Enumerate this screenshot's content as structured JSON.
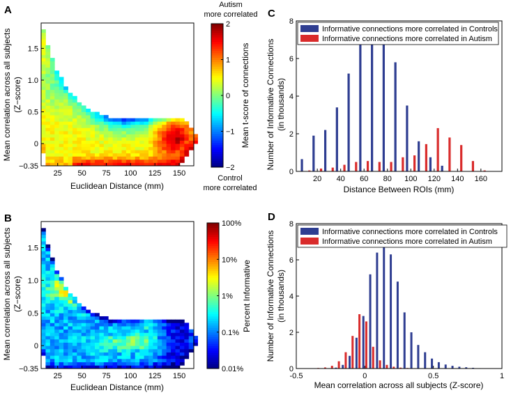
{
  "chart_data": [
    {
      "panel": "A",
      "type": "heatmap",
      "xlabel": "Euclidean Distance (mm)",
      "ylabel_lines": [
        "Mean correlation across all subjects",
        "(Z−score)"
      ],
      "x_range": [
        8,
        165
      ],
      "y_range": [
        -0.35,
        1.9
      ],
      "x_ticks": [
        "25",
        "50",
        "75",
        "100",
        "125",
        "150"
      ],
      "x_tick_values": [
        25,
        50,
        75,
        100,
        125,
        150
      ],
      "y_ticks": [
        "1.5",
        "1.0",
        "0.5",
        "0",
        "−0.35"
      ],
      "y_tick_values": [
        1.5,
        1.0,
        0.5,
        0,
        -0.35
      ],
      "colorbar": {
        "label": "Mean t-score of connections",
        "ticks": [
          "2",
          "1",
          "0",
          "−1",
          "−2"
        ],
        "tick_values": [
          2,
          1,
          0,
          -1,
          -2
        ],
        "range": [
          -2,
          2
        ],
        "top_label_lines": [
          "Autism",
          "more correlated"
        ],
        "bottom_label_lines": [
          "Control",
          "more correlated"
        ],
        "colormap": "jet"
      }
    },
    {
      "panel": "B",
      "type": "heatmap",
      "xlabel": "Euclidean Distance (mm)",
      "ylabel_lines": [
        "Mean correlation across all subjects",
        "(Z−score)"
      ],
      "x_range": [
        8,
        165
      ],
      "y_range": [
        -0.35,
        1.9
      ],
      "x_ticks": [
        "25",
        "50",
        "75",
        "100",
        "125",
        "150"
      ],
      "x_tick_values": [
        25,
        50,
        75,
        100,
        125,
        150
      ],
      "y_ticks": [
        "1.5",
        "1.0",
        "0.5",
        "0",
        "−0.35"
      ],
      "y_tick_values": [
        1.5,
        1.0,
        0.5,
        0,
        -0.35
      ],
      "colorbar": {
        "label": "Percent Informative",
        "ticks": [
          "100%",
          "10%",
          "1%",
          "0.1%",
          "0.01%"
        ],
        "tick_values": [
          2,
          1,
          0,
          -1,
          -2
        ],
        "range": [
          -2,
          2
        ],
        "scale": "log10 percent",
        "colormap": "jet"
      }
    },
    {
      "panel": "C",
      "type": "bar",
      "xlabel": "Distance Between ROIs (mm)",
      "ylabel_lines": [
        "Number of Informative Connections",
        "(in thousands)"
      ],
      "x_range": [
        2,
        178
      ],
      "ylim": [
        0,
        8
      ],
      "x_ticks": [
        "20",
        "40",
        "60",
        "80",
        "100",
        "120",
        "140",
        "160"
      ],
      "x_tick_values": [
        20,
        40,
        60,
        80,
        100,
        120,
        140,
        160
      ],
      "y_ticks": [
        "0",
        "2",
        "4",
        "6",
        "8"
      ],
      "y_tick_values": [
        0,
        2,
        4,
        6,
        8
      ],
      "x": [
        10,
        20,
        30,
        40,
        50,
        60,
        70,
        80,
        90,
        100,
        110,
        120,
        130,
        140,
        150,
        160
      ],
      "series": [
        {
          "name": "Informative connections more correlated in Controls",
          "color": "#2e3d91",
          "values": [
            0.65,
            1.9,
            2.2,
            3.4,
            5.2,
            7.1,
            6.9,
            7.4,
            5.8,
            3.5,
            1.6,
            0.75,
            0.3,
            0.0,
            0.0,
            0.0
          ]
        },
        {
          "name": "Informative connections more correlated in Autism",
          "color": "#d92b2b",
          "values": [
            0.05,
            0.15,
            0.2,
            0.35,
            0.5,
            0.55,
            0.5,
            0.5,
            0.75,
            0.85,
            1.45,
            2.3,
            1.8,
            1.4,
            0.55,
            0.05
          ]
        }
      ],
      "legend_position": "top-left"
    },
    {
      "panel": "D",
      "type": "bar",
      "xlabel": "Mean correlation across all subjects (Z-score)",
      "ylabel_lines": [
        "Number of Informative Connections",
        "(in thousands)"
      ],
      "x_range": [
        -0.5,
        1.0
      ],
      "ylim": [
        0,
        8
      ],
      "x_ticks": [
        "-0.5",
        "0",
        "0.5",
        "1"
      ],
      "x_tick_values": [
        -0.5,
        0,
        0.5,
        1.0
      ],
      "y_ticks": [
        "0",
        "2",
        "4",
        "6",
        "8"
      ],
      "y_tick_values": [
        0,
        2,
        4,
        6,
        8
      ],
      "x": [
        -0.35,
        -0.3,
        -0.25,
        -0.2,
        -0.15,
        -0.1,
        -0.05,
        0.0,
        0.05,
        0.1,
        0.15,
        0.2,
        0.25,
        0.3,
        0.35,
        0.4,
        0.45,
        0.5,
        0.55,
        0.6,
        0.65,
        0.7,
        0.75,
        0.8,
        0.85,
        0.9
      ],
      "series": [
        {
          "name": "Informative connections more correlated in Controls",
          "color": "#2e3d91",
          "values": [
            0.0,
            0.0,
            0.02,
            0.05,
            0.2,
            0.7,
            1.7,
            2.9,
            5.2,
            6.4,
            6.7,
            6.3,
            4.8,
            3.1,
            2.0,
            1.3,
            0.9,
            0.55,
            0.35,
            0.22,
            0.15,
            0.1,
            0.07,
            0.04,
            0.02,
            0.01
          ]
        },
        {
          "name": "Informative connections more correlated in Autism",
          "color": "#d92b2b",
          "values": [
            0.03,
            0.06,
            0.15,
            0.4,
            0.9,
            1.8,
            3.0,
            2.6,
            1.2,
            0.45,
            0.2,
            0.1,
            0.05,
            0.03,
            0.02,
            0.01,
            0.0,
            0.0,
            0.0,
            0.0,
            0.0,
            0.0,
            0.0,
            0.0,
            0.0,
            0.0
          ]
        }
      ],
      "legend_position": "top-left"
    }
  ]
}
